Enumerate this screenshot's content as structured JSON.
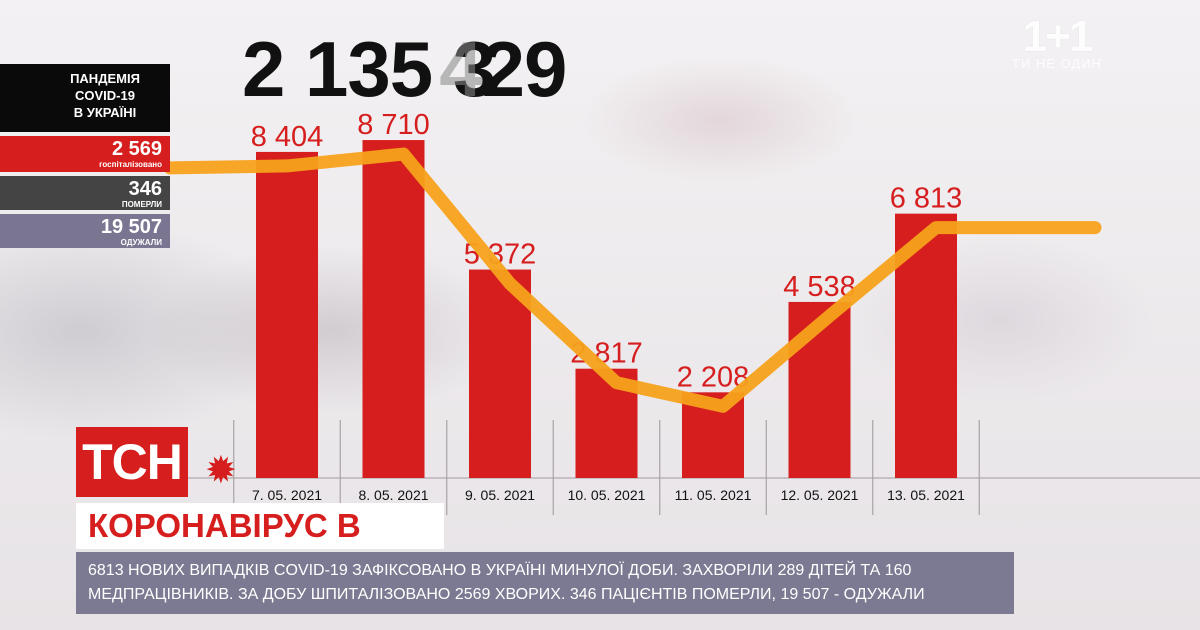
{
  "total_cases": "2 135 3",
  "total_cases_ghost": "4",
  "total_cases_tail": "29",
  "channel": {
    "name": "1+1",
    "tagline": "ТИ НЕ ОДИН"
  },
  "panel": {
    "title_lines": [
      "ПАНДЕМІЯ",
      "COVID-19",
      "В УКРАЇНІ"
    ],
    "hospitalized": {
      "value": "2 569",
      "caption": "госпіталізовано"
    },
    "died": {
      "value": "346",
      "caption": "ПОМЕРЛИ"
    },
    "recovered": {
      "value": "19 507",
      "caption": "ОДУЖАЛИ"
    }
  },
  "colors": {
    "bar": "#d61e1e",
    "line": "#f7a21b",
    "panel_dead": "#444444",
    "panel_recovered": "#7a7590"
  },
  "chart_data": {
    "type": "bar",
    "categories": [
      "7. 05. 2021",
      "8. 05. 2021",
      "9. 05. 2021",
      "10. 05. 2021",
      "11. 05. 2021",
      "12. 05. 2021",
      "13. 05. 2021"
    ],
    "values": [
      8404,
      8710,
      5372,
      2817,
      2208,
      4538,
      6813
    ],
    "value_labels": [
      "8 404",
      "8 710",
      "5 372",
      "2 817",
      "2 208",
      "4 538",
      "6 813"
    ],
    "overlay_line": "trend line following bar values",
    "ylim": [
      0,
      10000
    ]
  },
  "brand": {
    "logo": "ТСН",
    "icon": "virus-icon"
  },
  "headline": "КОРОНАВІРУС В УКРАЇНІ",
  "ticker": "6813 НОВИХ ВИПАДКІВ COVID-19 ЗАФІКСОВАНО В УКРАЇНІ МИНУЛОЇ ДОБИ. ЗАХВОРІЛИ 289 ДІТЕЙ ТА 160 МЕДПРАЦІВНИКІВ. ЗА ДОБУ ШПИТАЛІЗОВАНО 2569 ХВОРИХ. 346 ПАЦІЄНТІВ ПОМЕРЛИ, 19 507 - ОДУЖАЛИ"
}
